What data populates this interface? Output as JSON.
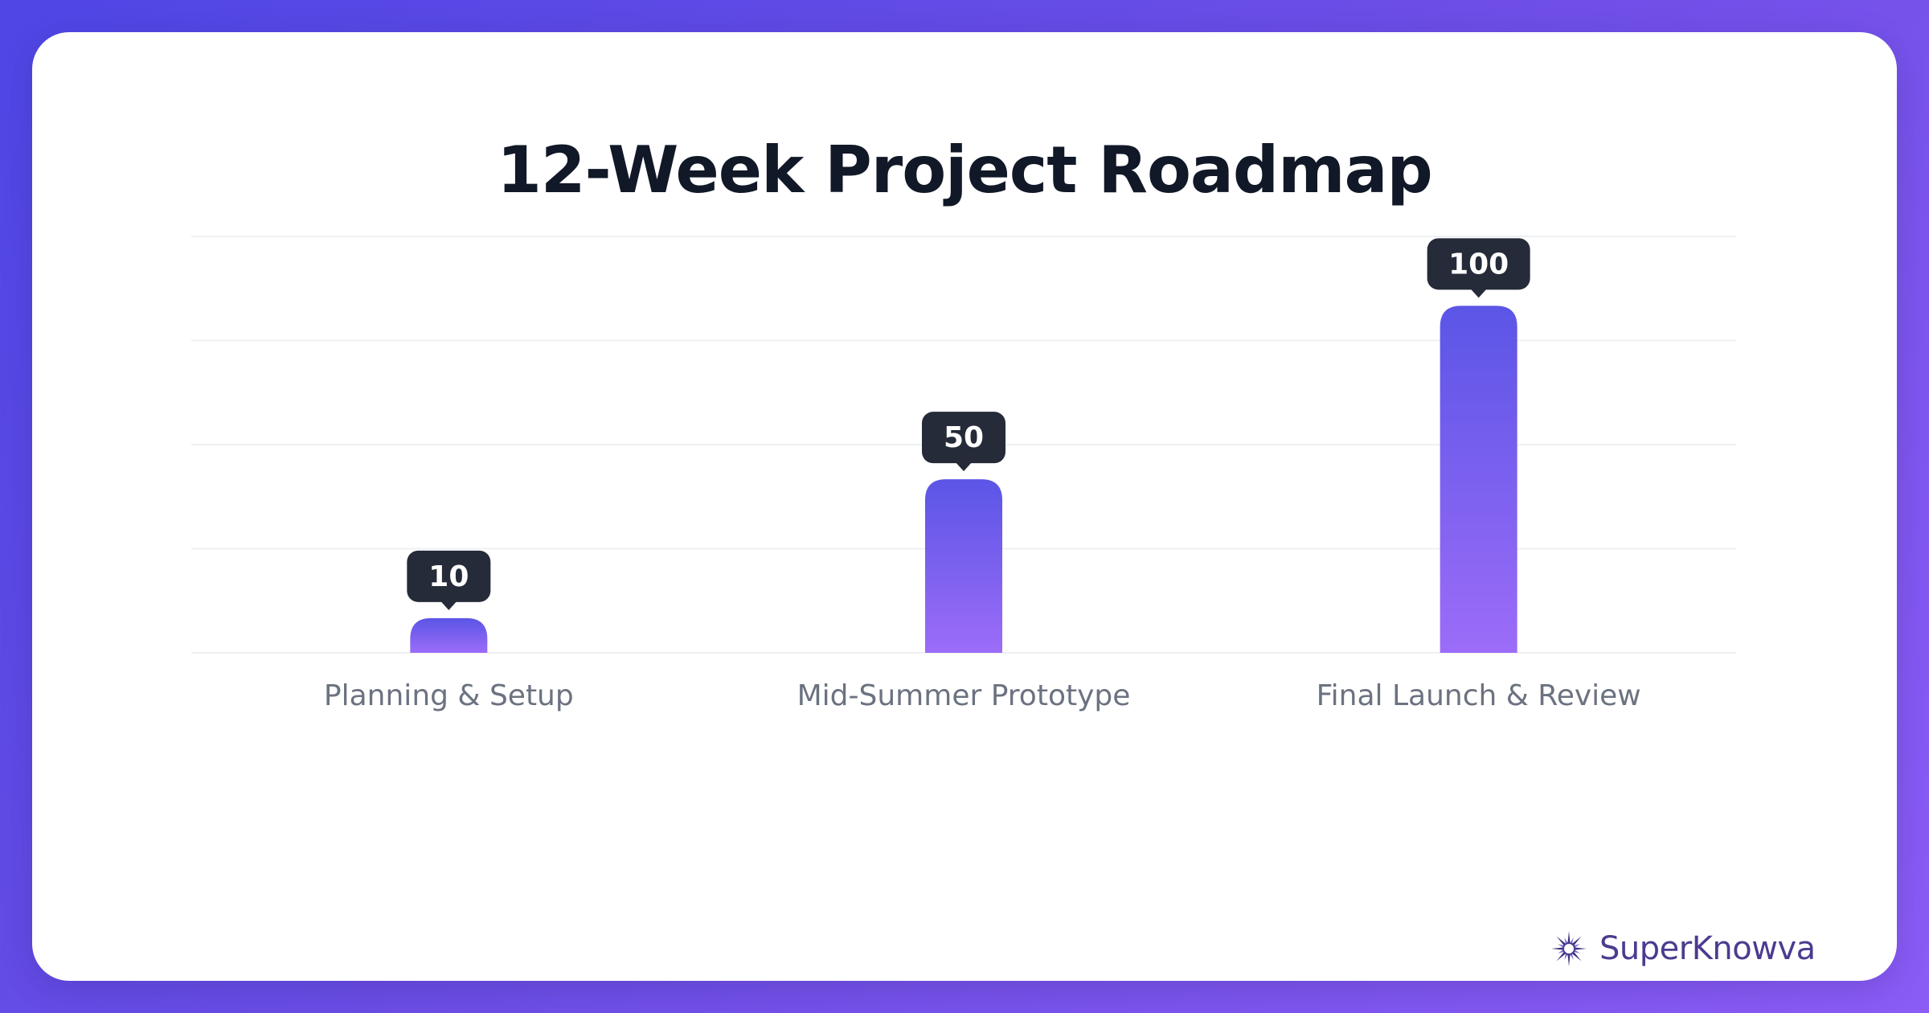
{
  "title": "12-Week Project Roadmap",
  "brand": {
    "name": "SuperKnowva",
    "logo_icon": "starburst-logo-icon"
  },
  "colors": {
    "background_start": "#4f46e5",
    "background_end": "#8b5cf6",
    "bar_top": "#5b55e6",
    "bar_bottom": "#9c6cf8",
    "label_badge": "#252b38",
    "title": "#111827",
    "category_label": "#6b7280",
    "gridline": "#eef0f3"
  },
  "chart_data": {
    "type": "bar",
    "categories": [
      "Planning & Setup",
      "Mid-Summer Prototype",
      "Final Launch & Review"
    ],
    "values": [
      10,
      50,
      100
    ],
    "data_labels": [
      "10",
      "50",
      "100"
    ],
    "title": "12-Week Project Roadmap",
    "xlabel": "",
    "ylabel": "",
    "ylim": [
      0,
      120
    ],
    "grid": true,
    "legend": "none"
  }
}
